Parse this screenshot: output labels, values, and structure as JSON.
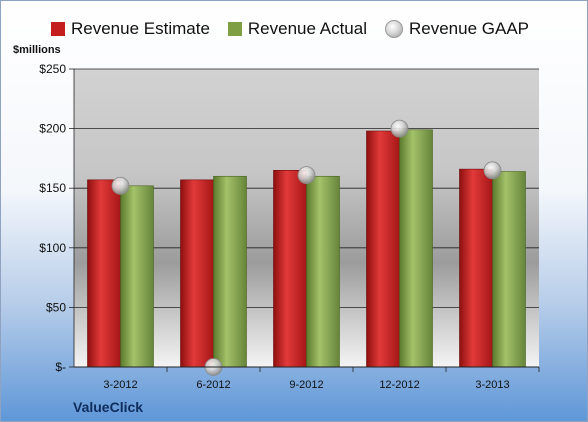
{
  "chart_data": {
    "type": "bar",
    "unit_label": "$millions",
    "categories": [
      "3-2012",
      "6-2012",
      "9-2012",
      "12-2012",
      "3-2013"
    ],
    "series": [
      {
        "name": "Revenue Estimate",
        "kind": "bar",
        "color": "#c41e1e",
        "values": [
          157,
          157,
          165,
          198,
          166
        ]
      },
      {
        "name": "Revenue Actual",
        "kind": "bar",
        "color": "#7f9f45",
        "values": [
          152,
          160,
          160,
          199,
          164
        ]
      },
      {
        "name": "Revenue GAAP",
        "kind": "marker",
        "color": "#bfbfbf",
        "values": [
          152,
          0,
          161,
          200,
          165
        ]
      }
    ],
    "ylim": [
      0,
      250
    ],
    "yticks": [
      0,
      50,
      100,
      150,
      200,
      250
    ],
    "ytick_labels": [
      "$-",
      "$50",
      "$100",
      "$150",
      "$200",
      "$250"
    ],
    "grid": true,
    "legend_position": "top"
  },
  "footer": {
    "brand": "ValueClick"
  }
}
